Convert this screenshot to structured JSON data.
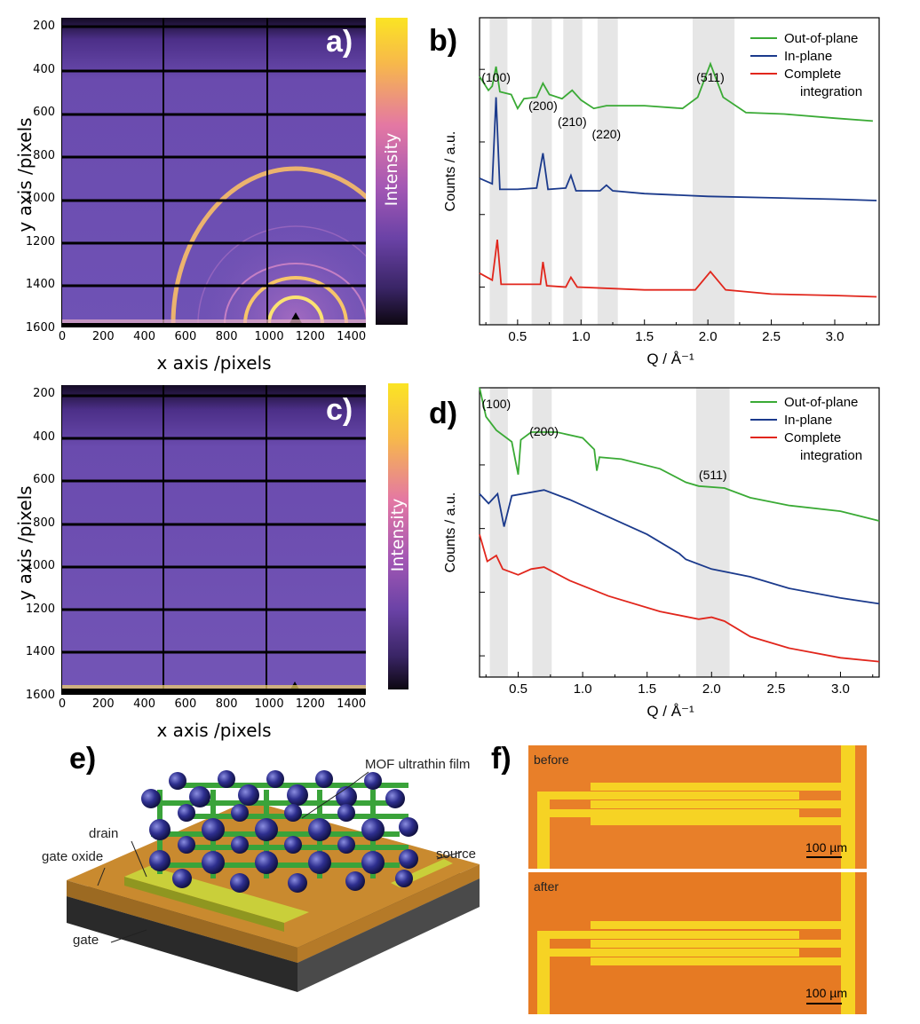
{
  "panels": {
    "a": {
      "label": "a)",
      "xlabel": "x axis /pixels",
      "ylabel": "y axis /pixels",
      "colorbar_label": "Intensity",
      "x_ticks": [
        "0",
        "200",
        "400",
        "600",
        "800",
        "1000",
        "1200",
        "1400"
      ],
      "y_ticks": [
        "200",
        "400",
        "600",
        "800",
        "1000",
        "1200",
        "1400",
        "1600"
      ]
    },
    "c": {
      "label": "c)",
      "xlabel": "x axis /pixels",
      "ylabel": "y axis /pixels",
      "colorbar_label": "Intensity",
      "x_ticks": [
        "0",
        "200",
        "400",
        "600",
        "800",
        "1000",
        "1200",
        "1400"
      ],
      "y_ticks": [
        "200",
        "400",
        "600",
        "800",
        "1000",
        "1200",
        "1400",
        "1600"
      ]
    },
    "e": {
      "label": "e)",
      "labels": {
        "mof": "MOF ultrathin film",
        "drain": "drain",
        "source": "source",
        "gate_oxide": "gate oxide",
        "gate": "gate"
      }
    },
    "f": {
      "label": "f)",
      "top_caption": "before",
      "bottom_caption": "after",
      "scale": "100 µm"
    }
  },
  "chart_data": [
    {
      "type": "line",
      "panel": "b)",
      "xlabel": "Q / Å⁻¹",
      "ylabel": "Counts / a.u.",
      "xlim": [
        0.2,
        3.35
      ],
      "x_ticks": [
        "0.5",
        "1.0",
        "1.5",
        "2.0",
        "2.5",
        "3.0"
      ],
      "shaded_regions": [
        [
          0.28,
          0.42
        ],
        [
          0.61,
          0.77
        ],
        [
          0.86,
          1.01
        ],
        [
          1.13,
          1.29
        ],
        [
          1.88,
          2.21
        ]
      ],
      "peak_labels": [
        {
          "text": "(100)",
          "q": 0.33
        },
        {
          "text": "(200)",
          "q": 0.7
        },
        {
          "text": "(210)",
          "q": 0.93
        },
        {
          "text": "(220)",
          "q": 1.2
        },
        {
          "text": "(511)",
          "q": 2.02
        }
      ],
      "legend": [
        "Out-of-plane",
        "In-plane",
        "Complete",
        "integration"
      ],
      "series": [
        {
          "name": "Out-of-plane",
          "color": "#3aaa35",
          "points": [
            [
              0.2,
              0.73
            ],
            [
              0.27,
              0.63
            ],
            [
              0.3,
              0.66
            ],
            [
              0.33,
              0.8
            ],
            [
              0.36,
              0.62
            ],
            [
              0.45,
              0.6
            ],
            [
              0.5,
              0.5
            ],
            [
              0.55,
              0.57
            ],
            [
              0.65,
              0.58
            ],
            [
              0.7,
              0.68
            ],
            [
              0.75,
              0.6
            ],
            [
              0.85,
              0.57
            ],
            [
              0.93,
              0.63
            ],
            [
              1.0,
              0.56
            ],
            [
              1.1,
              0.5
            ],
            [
              1.2,
              0.52
            ],
            [
              1.5,
              0.52
            ],
            [
              1.8,
              0.5
            ],
            [
              1.92,
              0.58
            ],
            [
              2.02,
              0.82
            ],
            [
              2.12,
              0.58
            ],
            [
              2.3,
              0.47
            ],
            [
              2.6,
              0.46
            ],
            [
              3.0,
              0.43
            ],
            [
              3.3,
              0.41
            ]
          ]
        },
        {
          "name": "In-plane",
          "color": "#1b3a8c",
          "points": [
            [
              0.2,
              0.0
            ],
            [
              0.3,
              -0.04
            ],
            [
              0.33,
              0.58
            ],
            [
              0.36,
              -0.08
            ],
            [
              0.5,
              -0.08
            ],
            [
              0.65,
              -0.07
            ],
            [
              0.7,
              0.18
            ],
            [
              0.74,
              -0.08
            ],
            [
              0.88,
              -0.07
            ],
            [
              0.92,
              0.02
            ],
            [
              0.96,
              -0.09
            ],
            [
              1.15,
              -0.09
            ],
            [
              1.2,
              -0.05
            ],
            [
              1.25,
              -0.09
            ],
            [
              1.5,
              -0.11
            ],
            [
              2.0,
              -0.13
            ],
            [
              2.5,
              -0.14
            ],
            [
              3.0,
              -0.15
            ],
            [
              3.33,
              -0.16
            ]
          ]
        },
        {
          "name": "Complete integration",
          "color": "#e1261c",
          "points": [
            [
              0.2,
              -0.68
            ],
            [
              0.3,
              -0.73
            ],
            [
              0.34,
              -0.44
            ],
            [
              0.37,
              -0.76
            ],
            [
              0.6,
              -0.76
            ],
            [
              0.68,
              -0.76
            ],
            [
              0.7,
              -0.6
            ],
            [
              0.73,
              -0.77
            ],
            [
              0.88,
              -0.78
            ],
            [
              0.92,
              -0.71
            ],
            [
              0.97,
              -0.78
            ],
            [
              1.5,
              -0.8
            ],
            [
              1.9,
              -0.8
            ],
            [
              2.02,
              -0.67
            ],
            [
              2.14,
              -0.8
            ],
            [
              2.5,
              -0.83
            ],
            [
              3.0,
              -0.84
            ],
            [
              3.33,
              -0.85
            ]
          ]
        }
      ]
    },
    {
      "type": "line",
      "panel": "d)",
      "xlabel": "Q / Å⁻¹",
      "ylabel": "Counts / a.u.",
      "xlim": [
        0.2,
        3.3
      ],
      "x_ticks": [
        "0.5",
        "1.0",
        "1.5",
        "2.0",
        "2.5",
        "3.0"
      ],
      "shaded_regions": [
        [
          0.28,
          0.42
        ],
        [
          0.61,
          0.76
        ],
        [
          1.88,
          2.14
        ]
      ],
      "peak_labels": [
        {
          "text": "(100)",
          "q": 0.33
        },
        {
          "text": "(200)",
          "q": 0.7
        },
        {
          "text": "(511)",
          "q": 2.01
        }
      ],
      "legend": [
        "Out-of-plane",
        "In-plane",
        "Complete",
        "integration"
      ],
      "series": [
        {
          "name": "Out-of-plane",
          "color": "#3aaa35",
          "points": [
            [
              0.2,
              1.0
            ],
            [
              0.25,
              0.85
            ],
            [
              0.33,
              0.78
            ],
            [
              0.45,
              0.72
            ],
            [
              0.5,
              0.55
            ],
            [
              0.52,
              0.73
            ],
            [
              0.6,
              0.77
            ],
            [
              0.8,
              0.77
            ],
            [
              1.0,
              0.74
            ],
            [
              1.09,
              0.68
            ],
            [
              1.11,
              0.57
            ],
            [
              1.13,
              0.64
            ],
            [
              1.3,
              0.63
            ],
            [
              1.6,
              0.58
            ],
            [
              1.8,
              0.51
            ],
            [
              1.9,
              0.49
            ],
            [
              2.1,
              0.48
            ],
            [
              2.3,
              0.43
            ],
            [
              2.6,
              0.39
            ],
            [
              3.0,
              0.36
            ],
            [
              3.3,
              0.31
            ]
          ]
        },
        {
          "name": "In-plane",
          "color": "#1b3a8c",
          "points": [
            [
              0.2,
              0.45
            ],
            [
              0.27,
              0.4
            ],
            [
              0.34,
              0.45
            ],
            [
              0.39,
              0.28
            ],
            [
              0.45,
              0.44
            ],
            [
              0.7,
              0.47
            ],
            [
              0.9,
              0.42
            ],
            [
              1.2,
              0.33
            ],
            [
              1.5,
              0.24
            ],
            [
              1.75,
              0.14
            ],
            [
              1.8,
              0.11
            ],
            [
              2.0,
              0.06
            ],
            [
              2.3,
              0.02
            ],
            [
              2.6,
              -0.04
            ],
            [
              3.0,
              -0.09
            ],
            [
              3.3,
              -0.12
            ]
          ]
        },
        {
          "name": "Complete integration",
          "color": "#e1261c",
          "points": [
            [
              0.2,
              0.24
            ],
            [
              0.26,
              0.1
            ],
            [
              0.33,
              0.13
            ],
            [
              0.38,
              0.06
            ],
            [
              0.5,
              0.03
            ],
            [
              0.6,
              0.06
            ],
            [
              0.7,
              0.07
            ],
            [
              0.9,
              0.0
            ],
            [
              1.2,
              -0.08
            ],
            [
              1.6,
              -0.16
            ],
            [
              1.9,
              -0.2
            ],
            [
              2.0,
              -0.19
            ],
            [
              2.1,
              -0.21
            ],
            [
              2.3,
              -0.29
            ],
            [
              2.6,
              -0.35
            ],
            [
              3.0,
              -0.4
            ],
            [
              3.3,
              -0.42
            ]
          ]
        }
      ]
    }
  ]
}
